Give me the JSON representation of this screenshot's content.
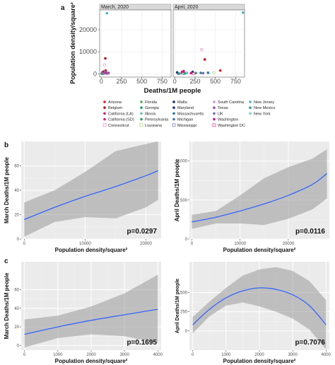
{
  "chart_data": [
    {
      "panel": "a",
      "type": "scatter",
      "facets": [
        "March, 2020",
        "April, 2020"
      ],
      "xlabel": "Deaths/1M people",
      "ylabel": "Population density/square²",
      "xticks": [
        0,
        250,
        500,
        750
      ],
      "yticks": [
        0,
        10000,
        20000
      ],
      "xlim": [
        -20,
        860
      ],
      "ylim": [
        -1500,
        29000
      ],
      "colors": {
        "Arizona": "#e31a1c",
        "Belgium": "#b2182b",
        "California (LA)": "#c51b7d",
        "California (SD)": "#dd1c77",
        "Connecticut": "#e78ac3",
        "Florida": "#4daf4a",
        "Georgia": "#1b9e77",
        "Illinois": "#66c2a5",
        "Pennsylvania": "#2ca25f",
        "Louisiana": "#a6d96a",
        "Malta": "#08306b",
        "Maryland": "#253494",
        "Massachusetts": "#1f78b4",
        "Michigan": "#4575b4",
        "Mississippi": "#7570b3",
        "South Carolina": "#c994c7",
        "Texas": "#984ea3",
        "UK": "#756bb1",
        "Washington": "#c51b8a",
        "Washington DC": "#e7298a",
        "New Jersey": "#41b6c4",
        "New Mexico": "#35978f",
        "New York": "#80cdc1"
      },
      "marker_hollow": [
        "Connecticut",
        "Louisiana",
        "Mississippi",
        "Washington DC"
      ],
      "march_points": [
        {
          "s": "New Jersey",
          "x": 70,
          "y": 27500
        },
        {
          "s": "Belgium",
          "x": 50,
          "y": 7000
        },
        {
          "s": "Connecticut",
          "x": 40,
          "y": 4000
        },
        {
          "s": "Arizona",
          "x": 55,
          "y": 1500
        },
        {
          "s": "California (LA)",
          "x": 30,
          "y": 1000
        },
        {
          "s": "Malta",
          "x": 20,
          "y": 800
        },
        {
          "s": "Maryland",
          "x": 35,
          "y": 500
        },
        {
          "s": "Massachusetts",
          "x": 60,
          "y": 700
        },
        {
          "s": "UK",
          "x": 90,
          "y": 400
        },
        {
          "s": "New York",
          "x": 25,
          "y": 300
        },
        {
          "s": "Florida",
          "x": 15,
          "y": 200
        },
        {
          "s": "Georgia",
          "x": 20,
          "y": 150
        },
        {
          "s": "Illinois",
          "x": 30,
          "y": 250
        },
        {
          "s": "Texas",
          "x": 10,
          "y": 100
        },
        {
          "s": "Washington",
          "x": 40,
          "y": 200
        },
        {
          "s": "Louisiana",
          "x": 45,
          "y": 350
        },
        {
          "s": "Mississippi",
          "x": 18,
          "y": 120
        },
        {
          "s": "Michigan",
          "x": 65,
          "y": 300
        },
        {
          "s": "Pennsylvania",
          "x": 12,
          "y": 250
        },
        {
          "s": "South Carolina",
          "x": 8,
          "y": 100
        },
        {
          "s": "California (SD)",
          "x": 14,
          "y": 600
        },
        {
          "s": "Washington DC",
          "x": 75,
          "y": 200
        },
        {
          "s": "New Mexico",
          "x": 5,
          "y": 50
        }
      ],
      "april_points": [
        {
          "s": "New Jersey",
          "x": 840,
          "y": 27800
        },
        {
          "s": "Connecticut",
          "x": 330,
          "y": 11000
        },
        {
          "s": "Belgium",
          "x": 370,
          "y": 6500
        },
        {
          "s": "Arizona",
          "x": 560,
          "y": 1500
        },
        {
          "s": "Malta",
          "x": 30,
          "y": 600
        },
        {
          "s": "Maryland",
          "x": 220,
          "y": 900
        },
        {
          "s": "Massachusetts",
          "x": 410,
          "y": 500
        },
        {
          "s": "UK",
          "x": 350,
          "y": 300
        },
        {
          "s": "New York",
          "x": 130,
          "y": 200
        },
        {
          "s": "Florida",
          "x": 80,
          "y": 300
        },
        {
          "s": "Georgia",
          "x": 120,
          "y": 150
        },
        {
          "s": "Illinois",
          "x": 150,
          "y": 400
        },
        {
          "s": "Texas",
          "x": 40,
          "y": 100
        },
        {
          "s": "Washington",
          "x": 200,
          "y": 300
        },
        {
          "s": "Louisiana",
          "x": 480,
          "y": 500
        },
        {
          "s": "Mississippi",
          "x": 100,
          "y": 200
        },
        {
          "s": "Michigan",
          "x": 320,
          "y": 400
        },
        {
          "s": "Pennsylvania",
          "x": 260,
          "y": 350
        },
        {
          "s": "South Carolina",
          "x": 60,
          "y": 150
        },
        {
          "s": "California (LA)",
          "x": 110,
          "y": 1200
        },
        {
          "s": "California (SD)",
          "x": 90,
          "y": 900
        },
        {
          "s": "Washington DC",
          "x": 230,
          "y": 100
        },
        {
          "s": "New Mexico",
          "x": 50,
          "y": 80
        }
      ],
      "legend": [
        [
          "Arizona",
          "Belgium",
          "California (LA)",
          "California (SD)",
          "Connecticut"
        ],
        [
          "Florida",
          "Georgia",
          "Illinois",
          "Pennsylvania",
          "Louisiana"
        ],
        [
          "Malta",
          "Maryland",
          "Massachusetts",
          "Michigan",
          "Mississippi"
        ],
        [
          "South Carolina",
          "Texas",
          "UK",
          "Washington",
          "Washington DC"
        ],
        [
          "New Jersey",
          "New Mexico",
          "New York"
        ]
      ]
    },
    {
      "panel": "b",
      "type": "line",
      "ylabel": "March Deaths/1M people",
      "xlabel": "Population density/square²",
      "xlim": [
        -500,
        22500
      ],
      "ylim": [
        0,
        80
      ],
      "xticks": [
        0,
        10000,
        20000
      ],
      "yticks": [
        0,
        20,
        40,
        60
      ],
      "x": [
        0,
        5000,
        10000,
        15000,
        20000,
        22000
      ],
      "fit": [
        16,
        26,
        35,
        43,
        52,
        56
      ],
      "upper": [
        30,
        40,
        55,
        72,
        78,
        80
      ],
      "lower": [
        2,
        14,
        18,
        17,
        26,
        32
      ],
      "annotation": "p=0.0297"
    },
    {
      "panel": "b",
      "type": "line",
      "ylabel": "April Deaths/1M people",
      "xlabel": "Population density/square²",
      "xlim": [
        -500,
        28500
      ],
      "ylim": [
        0,
        1250
      ],
      "xticks": [
        0,
        10000,
        20000
      ],
      "yticks": [
        0,
        500,
        1000
      ],
      "x": [
        0,
        5000,
        10000,
        15000,
        20000,
        25000,
        28000
      ],
      "fit": [
        220,
        280,
        360,
        450,
        560,
        700,
        840
      ],
      "upper": [
        310,
        360,
        560,
        780,
        920,
        1030,
        1150
      ],
      "lower": [
        130,
        200,
        200,
        180,
        260,
        380,
        520
      ],
      "annotation": "p=0.0116"
    },
    {
      "panel": "c",
      "type": "line",
      "ylabel": "March Deaths/1M people",
      "xlabel": "Population density/square²",
      "xlim": [
        -100,
        4100
      ],
      "ylim": [
        -5,
        90
      ],
      "xticks": [
        0,
        1000,
        2000,
        3000,
        4000
      ],
      "yticks": [
        0,
        20,
        40,
        60
      ],
      "x": [
        0,
        1000,
        2000,
        3000,
        4000
      ],
      "fit": [
        12,
        20,
        27,
        33,
        39
      ],
      "upper": [
        28,
        32,
        42,
        56,
        76
      ],
      "lower": [
        -2,
        8,
        12,
        10,
        3
      ],
      "annotation": "p=0.1695"
    },
    {
      "panel": "c",
      "type": "line",
      "ylabel": "April Deaths/1M people",
      "xlabel": "Population density/square²",
      "xlim": [
        -100,
        4100
      ],
      "ylim": [
        -250,
        900
      ],
      "xticks": [
        0,
        1000,
        2000,
        3000,
        4000
      ],
      "yticks": [
        0,
        250,
        500
      ],
      "x": [
        0,
        500,
        1000,
        1500,
        2000,
        2500,
        3000,
        3500,
        4000
      ],
      "fit": [
        80,
        280,
        430,
        520,
        560,
        540,
        470,
        330,
        80
      ],
      "upper": [
        180,
        380,
        560,
        720,
        800,
        830,
        780,
        650,
        400
      ],
      "lower": [
        -30,
        190,
        330,
        370,
        320,
        250,
        160,
        20,
        -240
      ],
      "annotation": "p=0.7076"
    }
  ]
}
